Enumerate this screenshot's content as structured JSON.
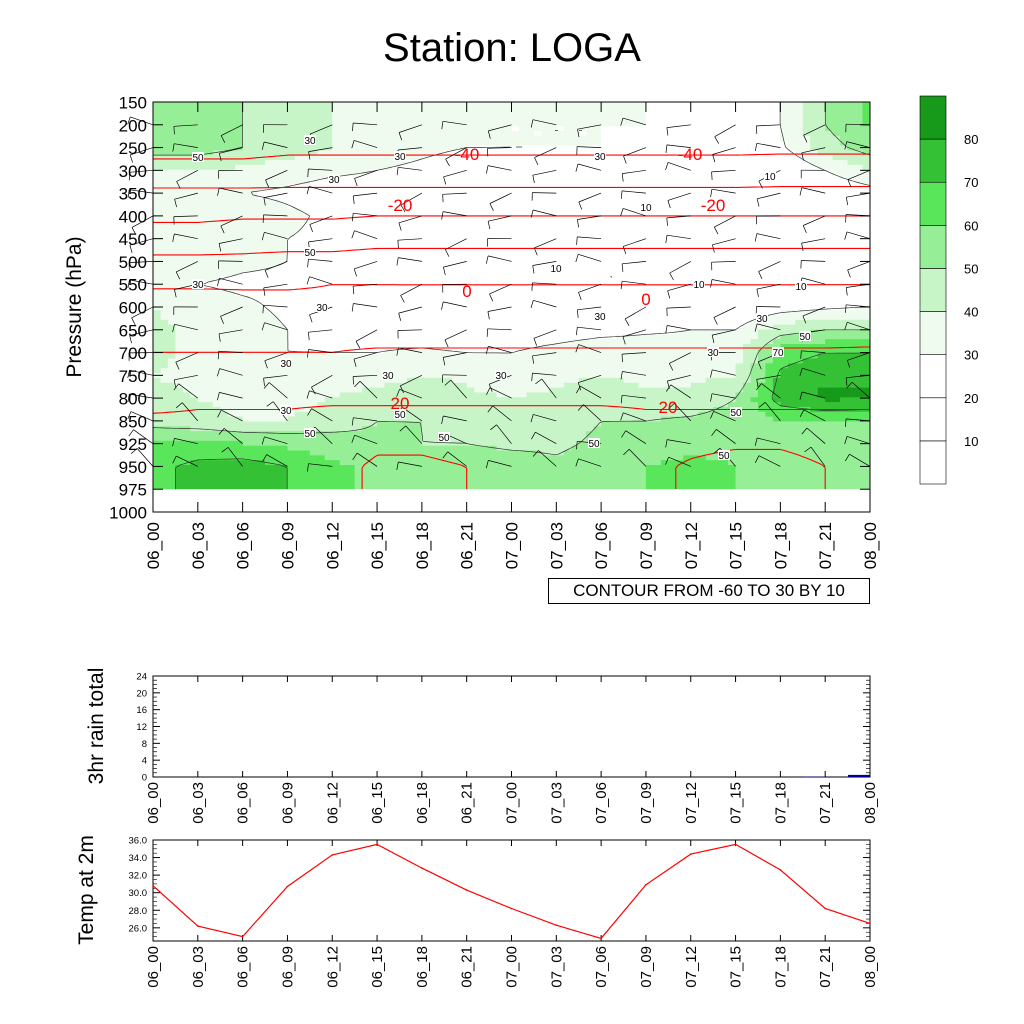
{
  "title": "Station: LOGA",
  "contour_info": "CONTOUR FROM -60 TO 30 BY 10",
  "colors": {
    "temperature": "#ff0000",
    "rain_bar": "#00008b",
    "rh_levels": [
      "#ffffff",
      "#ffffff",
      "#ffffff",
      "#eefbee",
      "#c8f5c8",
      "#96ee96",
      "#5ae65a",
      "#35c135",
      "#17991a"
    ]
  },
  "chart_data": [
    {
      "type": "heatmap",
      "name": "pressure-time cross section",
      "ylabel": "Pressure (hPa)",
      "xlabel": "",
      "x_ticks": [
        "06_00",
        "06_03",
        "06_06",
        "06_09",
        "06_12",
        "06_15",
        "06_18",
        "06_21",
        "07_00",
        "07_03",
        "07_06",
        "07_09",
        "07_12",
        "07_15",
        "07_18",
        "07_21",
        "08_00"
      ],
      "y_ticks": [
        150,
        200,
        250,
        300,
        350,
        400,
        450,
        500,
        550,
        600,
        650,
        700,
        750,
        800,
        850,
        925,
        950,
        975,
        1000
      ],
      "levels": [
        200,
        250,
        300,
        350,
        400,
        450,
        500,
        550,
        600,
        650,
        700,
        750,
        800,
        850,
        925,
        950
      ],
      "fill_levels": [
        10,
        20,
        30,
        40,
        50,
        60,
        70,
        80
      ],
      "colorbar_labels": [
        "10",
        "20",
        "30",
        "40",
        "50",
        "60",
        "70",
        "80"
      ],
      "relative_humidity": [
        [
          55,
          55,
          50,
          45,
          40,
          38,
          35,
          35,
          30,
          30,
          30,
          30,
          28,
          25,
          30,
          50,
          62
        ],
        [
          55,
          55,
          50,
          45,
          40,
          35,
          32,
          30,
          30,
          30,
          30,
          28,
          25,
          22,
          28,
          45,
          55
        ],
        [
          40,
          40,
          38,
          35,
          32,
          30,
          28,
          25,
          25,
          22,
          20,
          20,
          18,
          15,
          18,
          30,
          40
        ],
        [
          30,
          32,
          30,
          28,
          25,
          25,
          22,
          20,
          18,
          18,
          15,
          12,
          10,
          10,
          12,
          20,
          25
        ],
        [
          38,
          40,
          36,
          32,
          28,
          25,
          22,
          20,
          18,
          15,
          12,
          10,
          10,
          10,
          10,
          15,
          20
        ],
        [
          38,
          40,
          35,
          30,
          28,
          25,
          22,
          20,
          18,
          15,
          12,
          10,
          10,
          10,
          10,
          12,
          15
        ],
        [
          32,
          35,
          32,
          30,
          25,
          22,
          20,
          18,
          15,
          12,
          10,
          10,
          10,
          10,
          10,
          12,
          15
        ],
        [
          30,
          30,
          28,
          28,
          25,
          22,
          20,
          18,
          15,
          12,
          10,
          10,
          10,
          12,
          15,
          18,
          20
        ],
        [
          40,
          35,
          32,
          28,
          25,
          22,
          20,
          18,
          18,
          20,
          22,
          22,
          20,
          20,
          25,
          28,
          30
        ],
        [
          42,
          38,
          35,
          30,
          28,
          25,
          22,
          20,
          20,
          22,
          25,
          28,
          30,
          30,
          45,
          50,
          50
        ],
        [
          42,
          38,
          35,
          30,
          30,
          30,
          32,
          30,
          30,
          35,
          40,
          38,
          35,
          35,
          65,
          70,
          70
        ],
        [
          40,
          38,
          35,
          32,
          32,
          35,
          40,
          38,
          35,
          38,
          40,
          38,
          38,
          40,
          72,
          78,
          80
        ],
        [
          42,
          40,
          38,
          36,
          40,
          45,
          48,
          42,
          40,
          42,
          45,
          42,
          42,
          50,
          75,
          82,
          80
        ],
        [
          45,
          42,
          40,
          40,
          45,
          50,
          50,
          48,
          45,
          45,
          50,
          50,
          52,
          55,
          60,
          60,
          60
        ],
        [
          62,
          65,
          60,
          58,
          55,
          52,
          50,
          50,
          48,
          48,
          52,
          56,
          58,
          58,
          55,
          52,
          52
        ],
        [
          68,
          72,
          75,
          70,
          62,
          58,
          56,
          56,
          55,
          52,
          55,
          60,
          62,
          60,
          56,
          55,
          52
        ]
      ],
      "temperature": [
        [
          -48,
          -48,
          -48,
          -48,
          -48,
          -48,
          -48,
          -48,
          -48,
          -48,
          -48,
          -48,
          -48,
          -48,
          -48,
          -48,
          -48
        ],
        [
          -43,
          -43,
          -43,
          -42,
          -42,
          -42,
          -42,
          -42,
          -42,
          -42,
          -42,
          -42,
          -42,
          -42,
          -42,
          -42,
          -42
        ],
        [
          -37,
          -37,
          -37,
          -36,
          -36,
          -36,
          -36,
          -36,
          -36,
          -36,
          -36,
          -36,
          -36,
          -36,
          -35,
          -35,
          -35
        ],
        [
          -28,
          -28,
          -28,
          -28,
          -28,
          -28,
          -28,
          -28,
          -28,
          -28,
          -28,
          -28,
          -28,
          -28,
          -28,
          -28,
          -28
        ],
        [
          -22,
          -22,
          -21,
          -21,
          -21,
          -20,
          -20,
          -20,
          -20,
          -20,
          -20,
          -20,
          -20,
          -20,
          -20,
          -20,
          -20
        ],
        [
          -15,
          -15,
          -14,
          -14,
          -14,
          -13,
          -13,
          -13,
          -13,
          -13,
          -13,
          -13,
          -13,
          -13,
          -13,
          -13,
          -13
        ],
        [
          -8,
          -8,
          -8,
          -7,
          -7,
          -6,
          -6,
          -6,
          -6,
          -6,
          -6,
          -6,
          -6,
          -6,
          -6,
          -6,
          -6
        ],
        [
          -1,
          -1,
          -1,
          -1,
          0,
          0,
          0,
          0,
          0,
          0,
          0,
          0,
          0,
          0,
          0,
          0,
          0
        ],
        [
          4,
          4,
          3,
          3,
          2,
          2,
          1,
          1,
          1,
          1,
          1,
          1,
          1,
          1,
          1,
          2,
          2
        ],
        [
          7,
          7,
          7,
          7,
          7,
          6,
          6,
          6,
          6,
          6,
          6,
          6,
          6,
          6,
          6,
          6,
          7
        ],
        [
          10,
          10,
          10,
          10,
          10,
          11,
          11,
          11,
          11,
          11,
          11,
          11,
          11,
          11,
          11,
          11,
          11
        ],
        [
          14,
          14,
          14,
          14,
          14,
          15,
          15,
          15,
          15,
          15,
          15,
          15,
          15,
          15,
          15,
          15,
          15
        ],
        [
          18,
          19,
          19,
          19,
          19,
          19,
          19,
          19,
          19,
          19,
          19,
          19,
          19,
          19,
          19,
          19,
          19
        ],
        [
          21,
          21,
          21,
          21,
          22,
          22,
          22,
          22,
          22,
          22,
          22,
          21,
          21,
          21,
          21,
          21,
          21
        ],
        [
          24,
          24,
          24,
          24,
          26,
          29,
          29,
          28,
          27,
          24,
          24,
          26,
          28,
          29,
          29,
          27,
          26
        ],
        [
          26,
          25,
          24,
          26,
          28,
          31,
          31,
          30,
          29,
          25,
          24,
          28,
          31,
          33,
          33,
          30,
          27
        ]
      ],
      "contour_labels_temperature": [
        "-40",
        "-40",
        "-20",
        "-20",
        "0",
        "0",
        "20",
        "20"
      ],
      "contour_labels_rh": [
        "50",
        "30",
        "50",
        "30",
        "30",
        "30",
        "30",
        "10",
        "10",
        "30",
        "10",
        "10",
        "10",
        "30",
        "30",
        "30",
        "30",
        "70",
        "50",
        "30",
        "30",
        "30",
        "50",
        "50",
        "50",
        "50",
        "50",
        "50"
      ]
    },
    {
      "type": "bar",
      "name": "3hr rain total",
      "ylabel": "3hr rain total",
      "xlabel": "",
      "x_ticks": [
        "06_00",
        "06_03",
        "06_06",
        "06_09",
        "06_12",
        "06_15",
        "06_18",
        "06_21",
        "07_00",
        "07_03",
        "07_06",
        "07_09",
        "07_12",
        "07_15",
        "07_18",
        "07_21",
        "08_00"
      ],
      "y_ticks": [
        0,
        4,
        8,
        12,
        16,
        20,
        24
      ],
      "ylim": [
        0,
        24
      ],
      "values": [
        0,
        0,
        0,
        0,
        0,
        0,
        0,
        0,
        0,
        0,
        0,
        0,
        0,
        0,
        0,
        0.1,
        0.5
      ]
    },
    {
      "type": "line",
      "name": "Temp at 2m",
      "ylabel": "Temp at 2m",
      "xlabel": "",
      "x_ticks": [
        "06_00",
        "06_03",
        "06_06",
        "06_09",
        "06_12",
        "06_15",
        "06_18",
        "06_21",
        "07_00",
        "07_03",
        "07_06",
        "07_09",
        "07_12",
        "07_15",
        "07_18",
        "07_21",
        "08_00"
      ],
      "y_ticks": [
        "26.0",
        "28.0",
        "30.0",
        "32.0",
        "34.0",
        "36.0"
      ],
      "ylim": [
        24.5,
        36.0
      ],
      "values": [
        30.8,
        26.2,
        25.0,
        30.7,
        34.3,
        35.5,
        32.8,
        30.3,
        28.2,
        26.3,
        24.8,
        30.9,
        34.4,
        35.5,
        32.6,
        28.2,
        26.5
      ]
    }
  ]
}
